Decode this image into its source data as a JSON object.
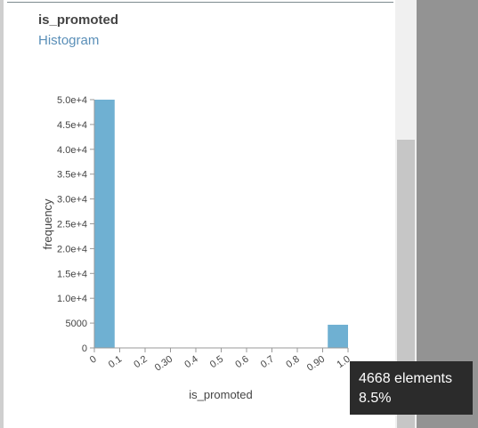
{
  "panel": {
    "title": "is_promoted",
    "subtitle": "Histogram"
  },
  "tooltip": {
    "count_line": "4668 elements",
    "percent_line": "8.5%"
  },
  "colors": {
    "bar": "#6fb0d2",
    "link": "#5a8fb8",
    "tooltip_bg": "#2b2b2b"
  },
  "chart_data": {
    "type": "bar",
    "title": "",
    "xlabel": "is_promoted",
    "ylabel": "frequency",
    "ylim": [
      0,
      50000
    ],
    "xlim": [
      0,
      1.0
    ],
    "y_ticks": [
      0,
      5000,
      10000,
      15000,
      20000,
      25000,
      30000,
      35000,
      40000,
      45000,
      50000
    ],
    "y_tick_labels": [
      "0",
      "5000",
      "1.0e+4",
      "1.5e+4",
      "2.0e+4",
      "2.5e+4",
      "3.0e+4",
      "3.5e+4",
      "4.0e+4",
      "4.5e+4",
      "5.0e+4"
    ],
    "x_ticks": [
      0,
      0.1,
      0.2,
      0.3,
      0.4,
      0.5,
      0.6,
      0.7,
      0.8,
      0.9,
      1.0
    ],
    "x_tick_labels": [
      "0",
      "0.1",
      "0.2",
      "0.30",
      "0.4",
      "0.5",
      "0.6",
      "0.7",
      "0.8",
      "0.90",
      "1.0"
    ],
    "bins": [
      {
        "x0": 0,
        "x1": 0.08,
        "count": 50000
      },
      {
        "x0": 0.92,
        "x1": 1.0,
        "count": 4668
      }
    ],
    "grid": false
  }
}
